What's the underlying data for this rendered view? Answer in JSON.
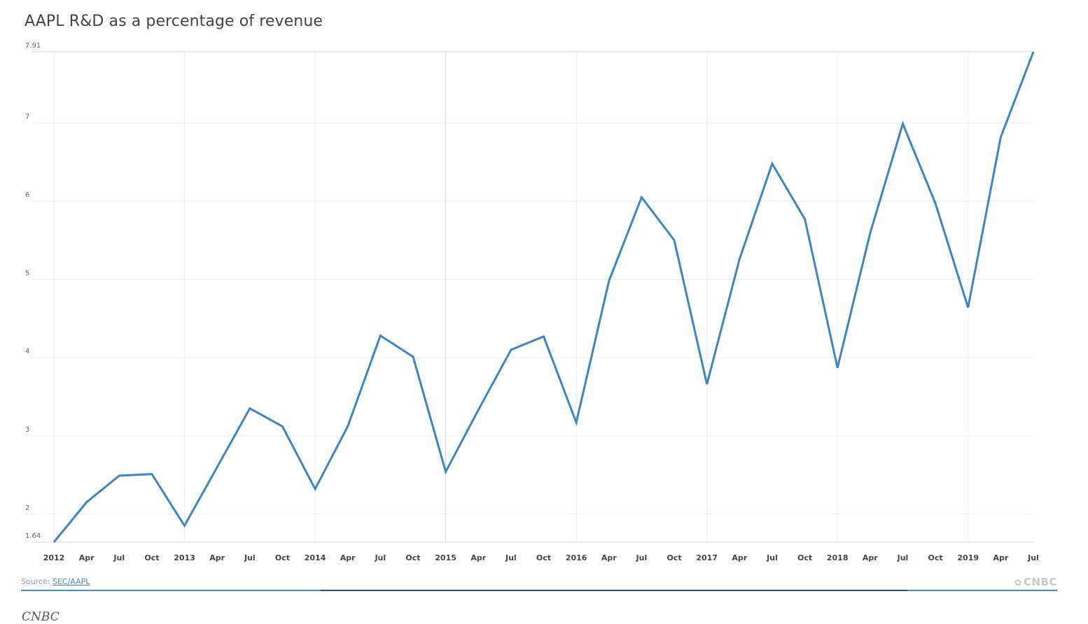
{
  "chart_data": {
    "type": "line",
    "title": "AAPL R&D as a percentage of revenue",
    "xlabel": "",
    "ylabel": "",
    "x": [
      "2012",
      "Apr",
      "Jul",
      "Oct",
      "2013",
      "Apr",
      "Jul",
      "Oct",
      "2014",
      "Apr",
      "Jul",
      "Oct",
      "2015",
      "Apr",
      "Jul",
      "Oct",
      "2016",
      "Apr",
      "Jul",
      "Oct",
      "2017",
      "Apr",
      "Jul",
      "Oct",
      "2018",
      "Apr",
      "Jul",
      "Oct",
      "2019",
      "Apr",
      "Jul"
    ],
    "values": [
      1.64,
      2.15,
      2.49,
      2.51,
      1.85,
      2.6,
      3.35,
      3.12,
      2.32,
      3.12,
      4.28,
      4.01,
      2.54,
      3.33,
      4.1,
      4.27,
      3.17,
      4.98,
      6.05,
      5.5,
      3.66,
      5.26,
      6.48,
      5.77,
      3.87,
      5.59,
      6.99,
      5.97,
      4.64,
      6.82,
      7.91
    ],
    "ylim": [
      1.64,
      7.91
    ],
    "y_ticks": [
      "1.64",
      "2",
      "3",
      "4",
      "5",
      "6",
      "7",
      "7.91"
    ],
    "line_color": "#3d85c6",
    "grid": true
  },
  "footer": {
    "source_prefix": "Source: ",
    "source_link": "SEC/AAPL",
    "brand": "CNBC"
  },
  "caption": "CNBC"
}
